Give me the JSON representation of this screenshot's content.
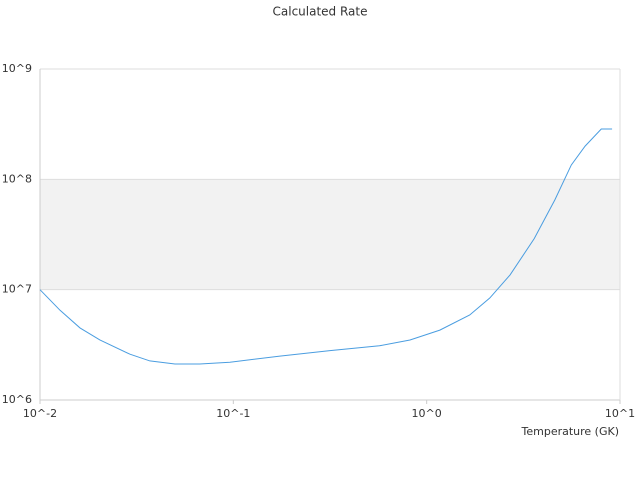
{
  "chart_data": {
    "type": "line",
    "title": "Calculated Rate",
    "x_label": "Temperature (GK)",
    "x_log": true,
    "y_log": true,
    "alternate_bands": true,
    "xlim": [
      0.01,
      10
    ],
    "ylim": [
      1000000,
      1000000000
    ],
    "xticks": [
      {
        "value": 0.01,
        "label": "10^-2"
      },
      {
        "value": 0.1,
        "label": "10^-1"
      },
      {
        "value": 1,
        "label": "10^0"
      },
      {
        "value": 10,
        "label": "10^1"
      }
    ],
    "yticks": [
      {
        "value": 1000000,
        "label": "10^6"
      },
      {
        "value": 10000000,
        "label": "10^7"
      },
      {
        "value": 100000000,
        "label": "10^8"
      },
      {
        "value": 1000000000,
        "label": "10^9"
      }
    ],
    "x": [
      0.01,
      0.0127,
      0.0161,
      0.0204,
      0.0292,
      0.037,
      0.0499,
      0.067,
      0.096,
      0.174,
      0.316,
      0.57,
      0.82,
      1.17,
      1.67,
      2.12,
      2.7,
      3.6,
      4.6,
      5.6,
      6.6,
      8.0,
      9.1
    ],
    "series": [
      {
        "color": "#4a9de0",
        "values": [
          10000000,
          6500000,
          4500000,
          3500000,
          2600000,
          2260000,
          2120000,
          2120000,
          2200000,
          2500000,
          2800000,
          3100000,
          3500000,
          4300000,
          5900000,
          8400000,
          13600000,
          29000000,
          65000000,
          135000000,
          200000000,
          286000000,
          286000000
        ]
      }
    ]
  }
}
